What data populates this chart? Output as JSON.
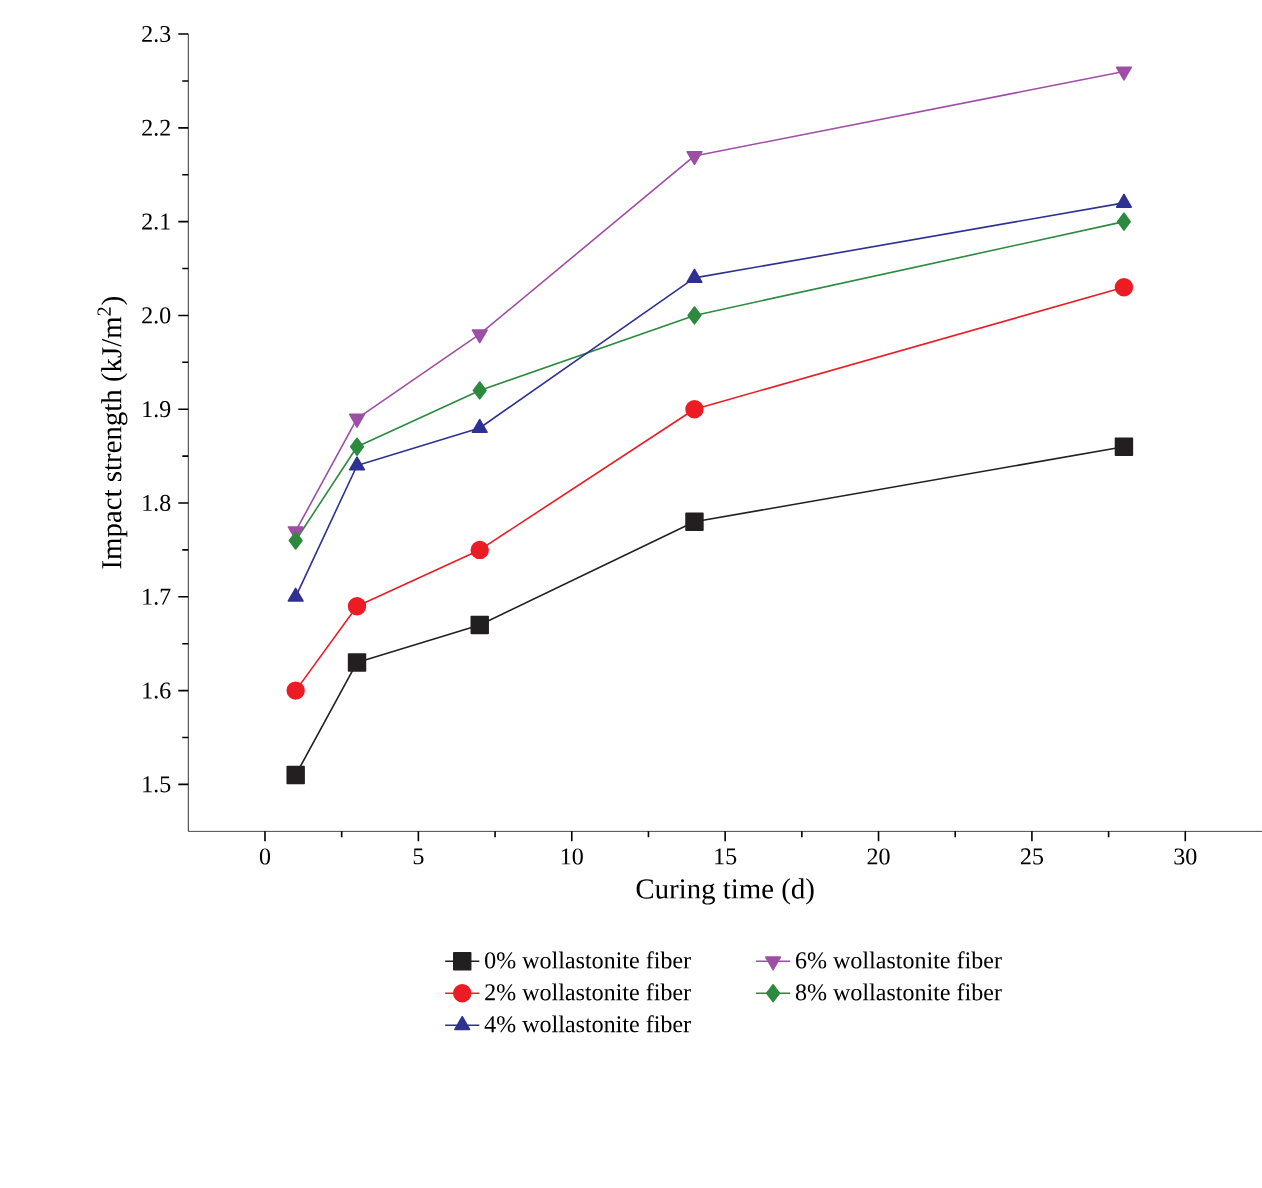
{
  "chart_data": {
    "type": "line",
    "xlabel": "Curing time (d)",
    "ylabel": "Impact strength (kJ/m$^{2}$)",
    "x": [
      1,
      3,
      7,
      14,
      28
    ],
    "xlim": [
      -2.5,
      32.5
    ],
    "xticks": [
      0,
      5,
      10,
      15,
      20,
      25,
      30
    ],
    "ylim": [
      1.45,
      2.3
    ],
    "yticks": [
      1.5,
      1.6,
      1.7,
      1.8,
      1.9,
      {
        "value": 2.0,
        "label": "2.0"
      },
      2.1,
      2.2,
      2.3
    ],
    "grid": false,
    "legend": "bottom",
    "line_style": "solid",
    "series": [
      {
        "name": "0% wollastonite fiber",
        "color": "#231f20",
        "marker": "square",
        "values": [
          1.51,
          1.63,
          1.67,
          1.78,
          1.86
        ]
      },
      {
        "name": "2% wollastonite fiber",
        "color": "#ed1c24",
        "marker": "circle",
        "values": [
          1.6,
          1.69,
          1.75,
          1.9,
          2.03
        ]
      },
      {
        "name": "4% wollastonite fiber",
        "color": "#2e3192",
        "marker": "triangle",
        "values": [
          1.7,
          1.84,
          1.88,
          2.04,
          2.12
        ]
      },
      {
        "name": "6% wollastonite fiber",
        "color": "#9e4ea5",
        "marker": "triangle down",
        "values": [
          1.77,
          1.89,
          1.98,
          2.17,
          2.26
        ]
      },
      {
        "name": "8% wollastonite fiber",
        "color": "#2b8a3e",
        "marker": "diamond",
        "values": [
          1.76,
          1.86,
          1.92,
          2.0,
          2.1
        ]
      }
    ]
  }
}
